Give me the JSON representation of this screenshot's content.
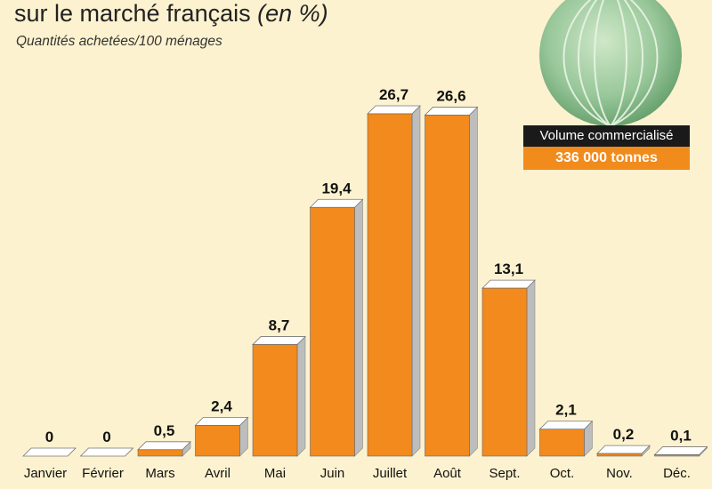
{
  "header": {
    "title_main": "sur le marché français",
    "title_unit": "(en %)",
    "subtitle": "Quantités achetées/100 ménages"
  },
  "volume": {
    "label": "Volume commercialisé",
    "value": "336 000 tonnes"
  },
  "illustration": "melon",
  "colors": {
    "bar": "#f28a1e",
    "bar_side": "#bdbdbd",
    "background": "#fdf2cf",
    "accent": "#f18b1c"
  },
  "chart_data": {
    "type": "bar",
    "title": "",
    "xlabel": "",
    "ylabel": "",
    "categories": [
      "Janvier",
      "Février",
      "Mars",
      "Avril",
      "Mai",
      "Juin",
      "Juillet",
      "Août",
      "Sept.",
      "Oct.",
      "Nov.",
      "Déc."
    ],
    "values": [
      0,
      0,
      0.5,
      2.4,
      8.7,
      19.4,
      26.7,
      26.6,
      13.1,
      2.1,
      0.2,
      0.1
    ],
    "value_labels": [
      "0",
      "0",
      "0,5",
      "2,4",
      "8,7",
      "19,4",
      "26,7",
      "26,6",
      "13,1",
      "2,1",
      "0,2",
      "0,1"
    ],
    "ylim": [
      0,
      26.7
    ],
    "grid": false,
    "legend": "none"
  }
}
